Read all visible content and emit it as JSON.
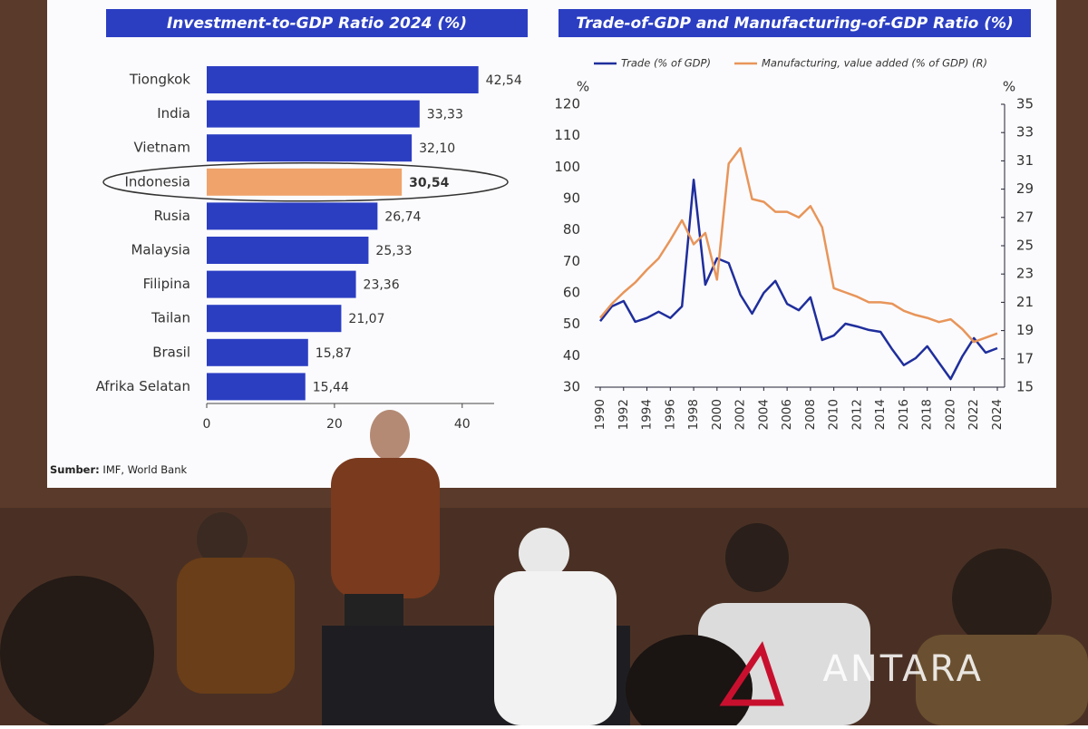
{
  "chart_data": [
    {
      "type": "hbar",
      "title": "Investment-to-GDP Ratio 2024 (%)",
      "categories": [
        "Tiongkok",
        "India",
        "Vietnam",
        "Indonesia",
        "Rusia",
        "Malaysia",
        "Filipina",
        "Tailan",
        "Brasil",
        "Afrika Selatan"
      ],
      "values": [
        42.54,
        33.33,
        32.1,
        30.54,
        26.74,
        25.33,
        23.36,
        21.07,
        15.87,
        15.44
      ],
      "value_labels": [
        "42,54",
        "33,33",
        "32,10",
        "30,54",
        "26,74",
        "25,33",
        "23,36",
        "21,07",
        "15,87",
        "15,44"
      ],
      "color": "#2b3ec2",
      "colors": [
        "#2b3ec2",
        "#2b3ec2",
        "#2b3ec2",
        "#f0a36a",
        "#2b3ec2",
        "#2b3ec2",
        "#2b3ec2",
        "#2b3ec2",
        "#2b3ec2",
        "#2b3ec2"
      ],
      "xlim": [
        0,
        45
      ],
      "xticks": [
        0,
        20,
        40
      ]
    },
    {
      "type": "line",
      "title": "Trade-of-GDP and Manufacturing-of-GDP Ratio (%)",
      "x": [
        1990,
        1991,
        1992,
        1993,
        1994,
        1995,
        1996,
        1997,
        1998,
        1999,
        2000,
        2001,
        2002,
        2003,
        2004,
        2005,
        2006,
        2007,
        2008,
        2009,
        2010,
        2011,
        2012,
        2013,
        2014,
        2015,
        2016,
        2017,
        2018,
        2019,
        2020,
        2021,
        2022,
        2023,
        2024
      ],
      "series": [
        {
          "name": "Trade (% of GDP)",
          "color": "#1f2e9c",
          "values": [
            51,
            55.7,
            57.4,
            50.8,
            52,
            54,
            52,
            55.7,
            96,
            62.6,
            71,
            69.5,
            59.4,
            53.4,
            60,
            63.8,
            56.5,
            54.5,
            58.6,
            45,
            46.4,
            50.2,
            49.3,
            48.2,
            47.6,
            42,
            37,
            39.2,
            43,
            37.8,
            32.6,
            39.8,
            45.6,
            41,
            42.4
          ]
        },
        {
          "name": "Manufacturing, value added (% of GDP) (R)",
          "color": "#e8955a",
          "axis": "y2",
          "values": [
            19.9,
            20.9,
            21.7,
            22.4,
            23.3,
            24.1,
            25.4,
            26.8,
            25.1,
            25.9,
            22.6,
            30.8,
            31.9,
            28.3,
            28.1,
            27.4,
            27.4,
            27,
            27.8,
            26.3,
            22,
            21.7,
            21.4,
            21,
            21,
            20.9,
            20.4,
            20.1,
            19.9,
            19.6,
            19.8,
            19.1,
            18.2,
            18.5,
            18.8
          ]
        }
      ],
      "y_unit": "%",
      "y2_unit": "%",
      "xlim": [
        1990,
        2024
      ],
      "xticks": [
        1990,
        1992,
        1994,
        1996,
        1998,
        2000,
        2002,
        2004,
        2006,
        2008,
        2010,
        2012,
        2014,
        2016,
        2018,
        2020,
        2022,
        2024
      ],
      "ylim": [
        30,
        120
      ],
      "yticks": [
        30,
        40,
        50,
        60,
        70,
        80,
        90,
        100,
        110,
        120
      ],
      "y2lim": [
        15,
        35
      ],
      "y2ticks": [
        15,
        17,
        19,
        21,
        23,
        25,
        27,
        29,
        31,
        33,
        35
      ]
    }
  ],
  "source_label": "Sumber:",
  "source": "IMF, World Bank",
  "watermark": "ANTARA"
}
